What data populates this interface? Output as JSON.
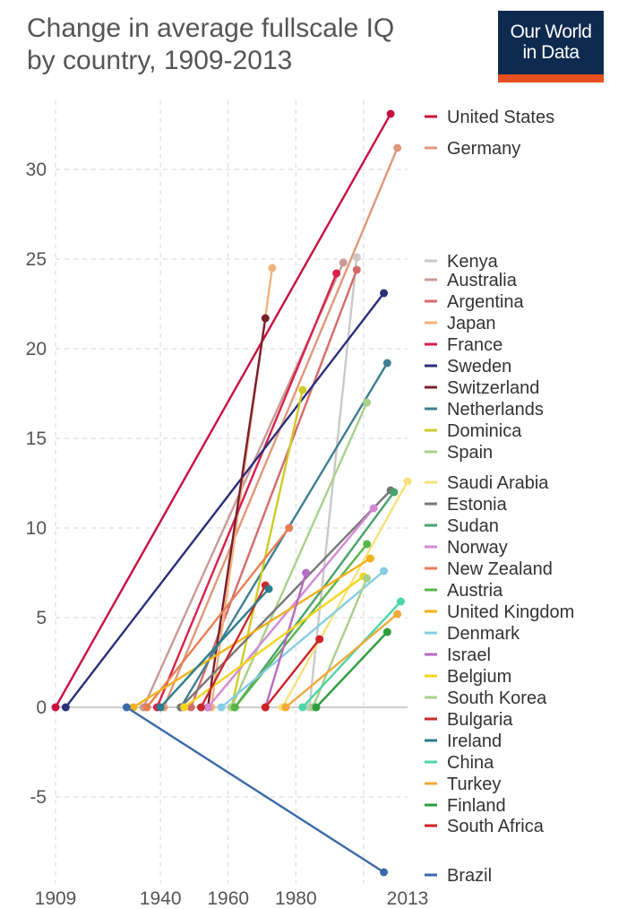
{
  "header": {
    "title_line1": "Change in average fullscale IQ",
    "title_line2": "by country, 1909-2013"
  },
  "logo": {
    "line1": "Our World",
    "line2": "in Data",
    "bg": "#0e2a4f",
    "accent": "#e64d1f"
  },
  "chart_data": {
    "type": "line",
    "title": "Change in average fullscale IQ by country, 1909-2013",
    "xlabel": "",
    "ylabel": "",
    "xlim": [
      1909,
      2013
    ],
    "ylim": [
      -10,
      33
    ],
    "x_ticks": [
      1909,
      1940,
      1960,
      1980,
      2013
    ],
    "x_grid": [
      1909,
      1940,
      1960,
      1980,
      2000
    ],
    "y_ticks": [
      30,
      25,
      20,
      15,
      10,
      5,
      0,
      -5
    ],
    "y_tick_labels": [
      "30",
      "25",
      "20",
      "15",
      "10",
      "5",
      "0",
      "-5"
    ],
    "series": [
      {
        "name": "United States",
        "color": "#c8103f",
        "x": [
          1909,
          2008
        ],
        "y": [
          0,
          33.1
        ]
      },
      {
        "name": "Germany",
        "color": "#e0977a",
        "x": [
          1941,
          2010
        ],
        "y": [
          0,
          31.2
        ]
      },
      {
        "name": "Kenya",
        "color": "#c9c9c9",
        "x": [
          1984,
          1998
        ],
        "y": [
          0,
          25.1
        ]
      },
      {
        "name": "Australia",
        "color": "#c99a96",
        "x": [
          1935,
          1994
        ],
        "y": [
          0,
          24.8
        ]
      },
      {
        "name": "Argentina",
        "color": "#d66a6a",
        "x": [
          1949,
          1998
        ],
        "y": [
          0,
          24.4
        ]
      },
      {
        "name": "Japan",
        "color": "#f2b27e",
        "x": [
          1955,
          1973
        ],
        "y": [
          0,
          24.5
        ]
      },
      {
        "name": "France",
        "color": "#d9214c",
        "x": [
          1939,
          1992
        ],
        "y": [
          0,
          24.2
        ]
      },
      {
        "name": "Sweden",
        "color": "#2b2f7a",
        "x": [
          1912,
          2006
        ],
        "y": [
          0,
          23.1
        ]
      },
      {
        "name": "Switzerland",
        "color": "#7a1f2e",
        "x": [
          1954,
          1971
        ],
        "y": [
          0,
          21.7
        ]
      },
      {
        "name": "Netherlands",
        "color": "#3f7f91",
        "x": [
          1946,
          2007
        ],
        "y": [
          0,
          19.2
        ]
      },
      {
        "name": "Dominica",
        "color": "#cfcb28",
        "x": [
          1961,
          1982
        ],
        "y": [
          0,
          17.7
        ]
      },
      {
        "name": "Spain",
        "color": "#a7d08b",
        "x": [
          1961,
          2001
        ],
        "y": [
          0,
          17.0
        ]
      },
      {
        "name": "Saudi Arabia",
        "color": "#f6e27a",
        "x": [
          1976,
          2013
        ],
        "y": [
          0,
          12.6
        ]
      },
      {
        "name": "Estonia",
        "color": "#777777",
        "x": [
          1946,
          2008
        ],
        "y": [
          0,
          12.1
        ]
      },
      {
        "name": "Sudan",
        "color": "#4aa36c",
        "x": [
          1962,
          2009
        ],
        "y": [
          0,
          12.0
        ]
      },
      {
        "name": "Norway",
        "color": "#d38ad6",
        "x": [
          1954,
          2003
        ],
        "y": [
          0,
          11.1
        ]
      },
      {
        "name": "New Zealand",
        "color": "#e87e54",
        "x": [
          1936,
          1978
        ],
        "y": [
          0,
          10.0
        ]
      },
      {
        "name": "Austria",
        "color": "#59b54a",
        "x": [
          1962,
          2001
        ],
        "y": [
          0,
          9.1
        ]
      },
      {
        "name": "United Kingdom",
        "color": "#f2b21b",
        "x": [
          1932,
          2002
        ],
        "y": [
          0,
          8.3
        ]
      },
      {
        "name": "Denmark",
        "color": "#87cde3",
        "x": [
          1958,
          2006
        ],
        "y": [
          0,
          7.6
        ]
      },
      {
        "name": "Israel",
        "color": "#b76bc2",
        "x": [
          1971,
          1983
        ],
        "y": [
          0,
          7.5
        ]
      },
      {
        "name": "Belgium",
        "color": "#f4d51f",
        "x": [
          1947,
          2000
        ],
        "y": [
          0,
          7.3
        ]
      },
      {
        "name": "South Korea",
        "color": "#a8cf8a",
        "x": [
          1985,
          2001
        ],
        "y": [
          0,
          7.2
        ]
      },
      {
        "name": "Bulgaria",
        "color": "#c9292b",
        "x": [
          1952,
          1971
        ],
        "y": [
          0,
          6.8
        ]
      },
      {
        "name": "Ireland",
        "color": "#2a7f8c",
        "x": [
          1940,
          1972
        ],
        "y": [
          0,
          6.6
        ]
      },
      {
        "name": "China",
        "color": "#4dd6a8",
        "x": [
          1982,
          2011
        ],
        "y": [
          0,
          5.9
        ]
      },
      {
        "name": "Turkey",
        "color": "#f0a93a",
        "x": [
          1977,
          2010
        ],
        "y": [
          0,
          5.2
        ]
      },
      {
        "name": "Finland",
        "color": "#2e9e3f",
        "x": [
          1986,
          2007
        ],
        "y": [
          0,
          4.2
        ]
      },
      {
        "name": "South Africa",
        "color": "#d02028",
        "x": [
          1971,
          1987
        ],
        "y": [
          0,
          3.8
        ]
      },
      {
        "name": "Brazil",
        "color": "#3a6aa8",
        "x": [
          1930,
          2006
        ],
        "y": [
          0,
          -9.2
        ]
      }
    ],
    "legend": {
      "placement": "right",
      "entries": [
        "United States",
        "Germany",
        "Kenya",
        "Australia",
        "Argentina",
        "Japan",
        "France",
        "Sweden",
        "Switzerland",
        "Netherlands",
        "Dominica",
        "Spain",
        "Saudi Arabia",
        "Estonia",
        "Sudan",
        "Norway",
        "New Zealand",
        "Austria",
        "United Kingdom",
        "Denmark",
        "Israel",
        "Belgium",
        "South Korea",
        "Bulgaria",
        "Ireland",
        "China",
        "Turkey",
        "Finland",
        "South Africa",
        "Brazil"
      ]
    }
  }
}
